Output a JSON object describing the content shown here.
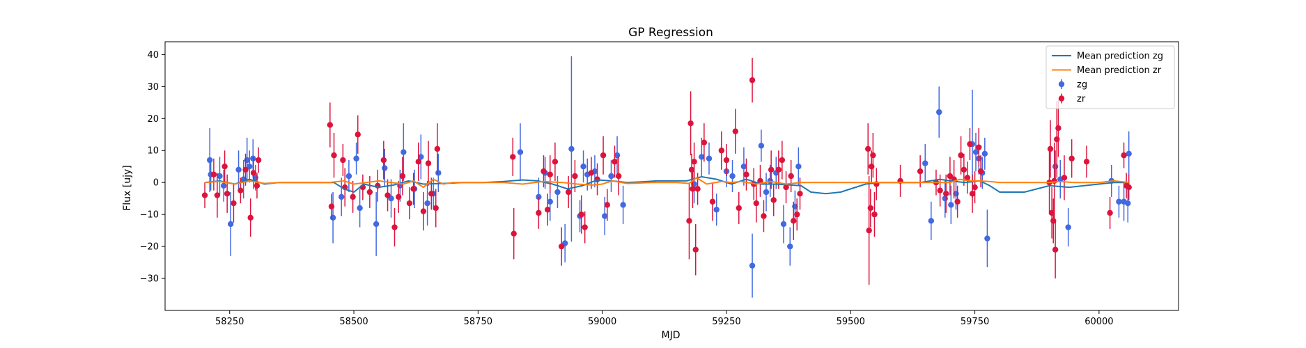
{
  "chart_data": {
    "type": "scatter",
    "title": "GP Regression",
    "xlabel": "MJD",
    "ylabel": "Flux [ujy]",
    "xlim": [
      58120,
      60160
    ],
    "ylim": [
      -40,
      44
    ],
    "x_ticks": [
      58250,
      58500,
      58750,
      59000,
      59250,
      59500,
      59750,
      60000
    ],
    "x_tick_labels": [
      "58250",
      "58500",
      "58750",
      "59000",
      "59250",
      "59500",
      "59750",
      "60000"
    ],
    "y_ticks": [
      -30,
      -20,
      -10,
      0,
      10,
      20,
      30,
      40
    ],
    "y_tick_labels": [
      "−30",
      "−20",
      "−10",
      "0",
      "10",
      "20",
      "30",
      "40"
    ],
    "grid": false,
    "legend_position": "top-right",
    "legend": [
      {
        "label": "Mean prediction zg",
        "kind": "line",
        "color": "#1f77b4"
      },
      {
        "label": "Mean prediction zr",
        "kind": "line",
        "color": "#ff7f0e"
      },
      {
        "label": "zg",
        "kind": "errorbar",
        "color": "#4169e1"
      },
      {
        "label": "zr",
        "kind": "errorbar",
        "color": "#dc143c"
      }
    ],
    "series": [
      {
        "name": "Mean prediction zg",
        "kind": "line",
        "color": "#1f77b4",
        "x": [
          58200,
          58230,
          58260,
          58290,
          58320,
          58350,
          58380,
          58400,
          58430,
          58460,
          58480,
          58500,
          58520,
          58550,
          58580,
          58610,
          58640,
          58680,
          58720,
          58760,
          58800,
          58840,
          58870,
          58900,
          58930,
          58960,
          58990,
          59020,
          59050,
          59080,
          59110,
          59140,
          59170,
          59200,
          59230,
          59260,
          59290,
          59320,
          59350,
          59380,
          59400,
          59420,
          59450,
          59480,
          59500,
          59530,
          59560,
          59600,
          59640,
          59680,
          59700,
          59730,
          59760,
          59780,
          59800,
          59850,
          59900,
          59940,
          59970,
          60000,
          60030,
          60060
        ],
        "y": [
          0,
          0.5,
          -0.5,
          1,
          -0.5,
          0,
          0,
          0,
          0,
          0,
          -2,
          -3,
          -0.5,
          -1.5,
          -0.8,
          0.5,
          -0.5,
          -0.3,
          0,
          0,
          0.3,
          0.8,
          0.5,
          -0.5,
          -2,
          -1,
          0.8,
          0.5,
          0,
          0.2,
          0.5,
          0.5,
          0.5,
          1.8,
          1,
          -0.5,
          1,
          -0.5,
          -0.5,
          -0.8,
          -1,
          -3,
          -3.5,
          -3,
          -2,
          -0.5,
          0,
          0,
          0,
          1,
          0.5,
          0,
          0.5,
          -1,
          -3,
          -3,
          -1,
          -1.5,
          -1,
          -0.5,
          0,
          0
        ]
      },
      {
        "name": "Mean prediction zr",
        "kind": "line",
        "color": "#ff7f0e",
        "x": [
          58200,
          58230,
          58260,
          58290,
          58320,
          58350,
          58400,
          58450,
          58480,
          58500,
          58550,
          58600,
          58620,
          58640,
          58660,
          58680,
          58700,
          58750,
          58800,
          58840,
          58880,
          58920,
          58950,
          58980,
          59000,
          59020,
          59050,
          59100,
          59150,
          59175,
          59190,
          59210,
          59240,
          59260,
          59280,
          59310,
          59340,
          59370,
          59400,
          59450,
          59500,
          59540,
          59560,
          59600,
          59650,
          59700,
          59720,
          59740,
          59760,
          59780,
          59800,
          59850,
          59900,
          59920,
          59950,
          60000,
          60030,
          60060
        ],
        "y": [
          0,
          0.3,
          -0.5,
          0.5,
          -0.3,
          0,
          0,
          0,
          0.5,
          -0.5,
          0.5,
          -0.5,
          0.5,
          -1.5,
          1,
          -0.5,
          0,
          0,
          0,
          -0.5,
          0.3,
          0,
          -0.5,
          -0.8,
          -0.5,
          0.5,
          -0.3,
          0,
          0,
          -0.3,
          1.5,
          -0.5,
          0.3,
          0,
          0.3,
          -0.5,
          0.3,
          -0.5,
          0,
          0,
          0,
          0,
          0,
          0,
          0,
          0,
          1,
          0.5,
          0.5,
          0.3,
          0,
          0,
          0,
          0.3,
          0,
          0,
          0.5,
          0
        ]
      },
      {
        "name": "zg",
        "kind": "errorbar",
        "color": "#4169e1",
        "x": [
          58210,
          58212,
          58230,
          58238,
          58252,
          58268,
          58278,
          58285,
          58290,
          58297,
          58302,
          58458,
          58475,
          58490,
          58505,
          58512,
          58545,
          58562,
          58575,
          58593,
          58600,
          58622,
          58635,
          58648,
          58660,
          58670,
          58835,
          58872,
          58885,
          58895,
          58910,
          58925,
          58938,
          58955,
          58962,
          58970,
          58985,
          59005,
          59018,
          59030,
          59042,
          59185,
          59200,
          59215,
          59230,
          59250,
          59262,
          59285,
          59302,
          59320,
          59330,
          59338,
          59350,
          59365,
          59378,
          59388,
          59395,
          59650,
          59662,
          59678,
          59690,
          59702,
          59712,
          59745,
          59752,
          59758,
          59765,
          59770,
          59775,
          59912,
          59922,
          59938,
          60025,
          60040,
          60050,
          60058,
          60060
        ],
        "y": [
          7,
          2.5,
          2,
          -1,
          -13,
          4,
          1,
          7,
          5,
          7.5,
          1.5,
          -11,
          -4.5,
          2,
          7.5,
          -8,
          -13,
          4.5,
          -5,
          -1,
          9.5,
          -2,
          8,
          -6.5,
          -3.5,
          3,
          9.5,
          -4.5,
          3,
          -6,
          -3,
          -19,
          10.5,
          -10.5,
          5,
          2.5,
          3.5,
          -10.5,
          2,
          8.5,
          -7,
          -0.5,
          8,
          7.5,
          -8.5,
          3.5,
          2,
          5,
          -26,
          11.5,
          -3,
          0.5,
          3,
          -13,
          -20,
          -7.5,
          5,
          6,
          -12,
          22,
          -5,
          -7,
          -3.5,
          12,
          9.5,
          7.5,
          3,
          9,
          -17.5,
          5,
          1,
          -14,
          0.5,
          -6,
          -6,
          -6.5,
          9
        ],
        "err": [
          10,
          5,
          6,
          5,
          10,
          6,
          6,
          7,
          5,
          6,
          4,
          8,
          6,
          5,
          5,
          6,
          10,
          6,
          6,
          5,
          9,
          6,
          7,
          7,
          5,
          6,
          9,
          6,
          5,
          6,
          5,
          6,
          29,
          5,
          5,
          5,
          5,
          6,
          5,
          6,
          6,
          6,
          6,
          5,
          5,
          5,
          5,
          6,
          10,
          5,
          6,
          5,
          5,
          6,
          6,
          5,
          6,
          6,
          6,
          8,
          6,
          6,
          5,
          17,
          6,
          5,
          5,
          5,
          9,
          5,
          6,
          6,
          5,
          5,
          6,
          6,
          7
        ]
      },
      {
        "name": "zr",
        "kind": "errorbar",
        "color": "#dc143c",
        "x": [
          58200,
          58218,
          58225,
          58240,
          58245,
          58258,
          58272,
          58282,
          58292,
          58298,
          58305,
          58308,
          58452,
          58455,
          58460,
          58478,
          58482,
          58498,
          58508,
          58518,
          58532,
          58548,
          58560,
          58568,
          58582,
          58590,
          58598,
          58612,
          58620,
          58630,
          58640,
          58650,
          58656,
          58665,
          58668,
          58820,
          58822,
          58872,
          58882,
          58890,
          58895,
          58905,
          58918,
          58932,
          58945,
          58958,
          58965,
          58978,
          58990,
          59002,
          59010,
          59025,
          59033,
          59175,
          59178,
          59180,
          59182,
          59185,
          59188,
          59192,
          59205,
          59222,
          59240,
          59250,
          59268,
          59275,
          59290,
          59302,
          59305,
          59310,
          59318,
          59325,
          59340,
          59345,
          59355,
          59362,
          59370,
          59380,
          59385,
          59392,
          59398,
          59535,
          59537,
          59540,
          59542,
          59545,
          59548,
          59552,
          59600,
          59640,
          59672,
          59680,
          59692,
          59700,
          59708,
          59715,
          59722,
          59728,
          59735,
          59740,
          59745,
          59750,
          59758,
          59762,
          59900,
          59902,
          59905,
          59908,
          59910,
          59912,
          59915,
          59918,
          59930,
          59945,
          59975,
          60022,
          60050,
          60055,
          60060
        ],
        "y": [
          -4,
          2.5,
          -4,
          5,
          -3.5,
          -6.5,
          -2.5,
          4,
          -11,
          3,
          -1,
          7,
          18,
          -7.5,
          8.5,
          7,
          -1.5,
          -4.5,
          15,
          -1.5,
          -3,
          -1,
          7,
          -4,
          -14,
          -4.5,
          2,
          -6.5,
          -2,
          6.5,
          -9,
          6,
          -3.5,
          -8,
          10.5,
          8,
          -16,
          -9.5,
          3.5,
          -8.5,
          2.5,
          6.5,
          -20,
          -3,
          2,
          -10,
          -14,
          3,
          1,
          8.5,
          -7,
          6.5,
          2,
          -12,
          18.5,
          4,
          -2,
          6.5,
          -21,
          -2,
          12.5,
          -6,
          10,
          7,
          16,
          -8,
          2.5,
          32,
          -0.5,
          -6.5,
          0.5,
          -10.5,
          4,
          -5.5,
          4,
          7,
          -1.5,
          2,
          -12,
          -10,
          -3.5,
          10.5,
          -15,
          -8,
          5,
          8.5,
          -10,
          -0.5,
          0.5,
          3.5,
          0,
          -2.5,
          -3.5,
          2,
          1,
          -6,
          8.5,
          4,
          1.5,
          12,
          -3.5,
          -1.5,
          11,
          3.5,
          0,
          10.5,
          -9.5,
          -12,
          0.5,
          -21,
          13.5,
          17,
          1.5,
          7.5,
          6.5,
          -9.5,
          8.5,
          -1,
          -1.5
        ],
        "err": [
          4,
          5,
          7,
          5,
          6,
          6,
          4,
          5,
          6,
          5,
          4,
          4,
          7,
          4,
          7,
          5,
          6,
          5,
          6,
          4,
          5,
          5,
          6,
          5,
          6,
          5,
          6,
          5,
          5,
          6,
          6,
          7,
          5,
          6,
          8,
          6,
          8,
          5,
          5,
          5,
          6,
          6,
          6,
          5,
          5,
          6,
          5,
          5,
          5,
          6,
          5,
          5,
          6,
          12,
          10,
          5,
          6,
          6,
          8,
          5,
          6,
          6,
          6,
          5,
          7,
          5,
          5,
          7,
          5,
          6,
          5,
          5,
          6,
          5,
          6,
          6,
          5,
          5,
          6,
          5,
          5,
          8,
          17,
          6,
          5,
          7,
          7,
          5,
          5,
          5,
          4,
          5,
          6,
          6,
          6,
          5,
          6,
          5,
          5,
          5,
          6,
          5,
          6,
          5,
          10,
          9,
          8,
          7,
          12,
          9,
          12,
          9,
          7,
          6,
          5,
          5,
          4,
          4,
          4
        ]
      }
    ]
  }
}
